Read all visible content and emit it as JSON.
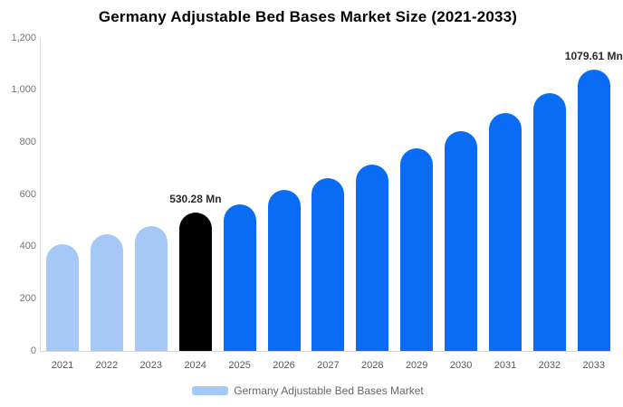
{
  "title": "Germany Adjustable Bed Bases Market Size (2021-2033)",
  "legend": {
    "label": "Germany Adjustable Bed Bases Market",
    "swatch_color": "#a5c8f7"
  },
  "colors": {
    "light_blue": "#a5c8f7",
    "accent_blue": "#0a6cf5",
    "highlight_black": "#000000",
    "axis_line": "#d9d9d9",
    "ytick_text": "#757575",
    "xtick_text": "#595959",
    "annotation_text": "#2b2b2b"
  },
  "chart_data": {
    "type": "bar",
    "title": "Germany Adjustable Bed Bases Market Size (2021-2033)",
    "categories": [
      "2021",
      "2022",
      "2023",
      "2024",
      "2025",
      "2026",
      "2027",
      "2028",
      "2029",
      "2030",
      "2031",
      "2032",
      "2033"
    ],
    "values": [
      410,
      446,
      479,
      530.28,
      563,
      616,
      663,
      716,
      778,
      843,
      913,
      989,
      1079.61
    ],
    "unit": "Mn",
    "bar_colors": [
      "#a5c8f7",
      "#a5c8f7",
      "#a5c8f7",
      "#000000",
      "#0a6cf5",
      "#0a6cf5",
      "#0a6cf5",
      "#0a6cf5",
      "#0a6cf5",
      "#0a6cf5",
      "#0a6cf5",
      "#0a6cf5",
      "#0a6cf5"
    ],
    "annotations": [
      {
        "category": "2024",
        "text": "530.28 Mn"
      },
      {
        "category": "2033",
        "text": "1079.61 Mn"
      }
    ],
    "xlabel": "",
    "ylabel": "",
    "ylim": [
      0,
      1200
    ],
    "ytick_labels": [
      "0",
      "200",
      "400",
      "600",
      "800",
      "1,000",
      "1,200"
    ],
    "ytick_values": [
      0,
      200,
      400,
      600,
      800,
      1000,
      1200
    ],
    "grid": false,
    "legend_position": "bottom"
  }
}
